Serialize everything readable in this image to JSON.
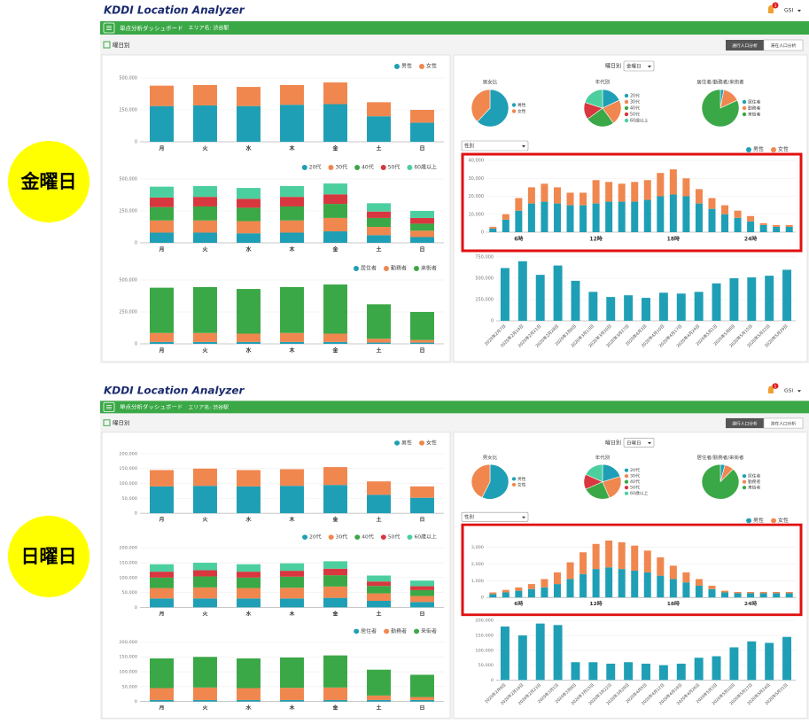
{
  "dashboards": [
    {
      "day_label": "金曜日",
      "header": {
        "logo": "KDDI Location Analyzer",
        "notifications": 1,
        "user": "GSI"
      },
      "nav": {
        "title": "単点分析ダッシュボード",
        "area": "エリア名: 渋谷駅"
      },
      "page_title": "曜日別",
      "tabs": [
        "通行人口分析",
        "滞在人口分析"
      ],
      "day_select": {
        "label": "曜日別",
        "value": "金曜日"
      },
      "weekday_charts": [
        {
          "type": "bar",
          "stacked": true,
          "categories": [
            "月",
            "火",
            "水",
            "木",
            "金",
            "土",
            "日"
          ],
          "series": [
            {
              "name": "男性",
              "color": "#1f9fb5",
              "values": [
                280000,
                285000,
                280000,
                290000,
                295000,
                200000,
                150000
              ]
            },
            {
              "name": "女性",
              "color": "#f0874f",
              "values": [
                160000,
                160000,
                150000,
                155000,
                170000,
                110000,
                100000
              ]
            }
          ],
          "ylim": [
            0,
            500000
          ],
          "yticks": [
            0,
            {
              "value": 250000,
              "label": "250,000"
            },
            {
              "value": 500000,
              "label": "500,000"
            }
          ]
        },
        {
          "type": "bar",
          "stacked": true,
          "categories": [
            "月",
            "火",
            "水",
            "木",
            "金",
            "土",
            "日"
          ],
          "series": [
            {
              "name": "20代",
              "color": "#1f9fb5",
              "values": [
                80000,
                80000,
                75000,
                80000,
                90000,
                60000,
                45000
              ]
            },
            {
              "name": "30代",
              "color": "#f0874f",
              "values": [
                95000,
                95000,
                95000,
                95000,
                105000,
                65000,
                50000
              ]
            },
            {
              "name": "40代",
              "color": "#3aa846",
              "values": [
                105000,
                110000,
                105000,
                110000,
                110000,
                70000,
                55000
              ]
            },
            {
              "name": "50代",
              "color": "#d8373f",
              "values": [
                75000,
                75000,
                70000,
                75000,
                75000,
                50000,
                45000
              ]
            },
            {
              "name": "60歳以上",
              "color": "#4ccf9f",
              "values": [
                85000,
                85000,
                85000,
                85000,
                85000,
                65000,
                55000
              ]
            }
          ],
          "ylim": [
            0,
            500000
          ],
          "yticks": [
            0,
            {
              "value": 250000,
              "label": "250,000"
            },
            {
              "value": 500000,
              "label": "500,000"
            }
          ]
        },
        {
          "type": "bar",
          "stacked": true,
          "categories": [
            "月",
            "火",
            "水",
            "木",
            "金",
            "土",
            "日"
          ],
          "series": [
            {
              "name": "居住者",
              "color": "#1f9fb5",
              "values": [
                15000,
                15000,
                15000,
                15000,
                15000,
                10000,
                10000
              ]
            },
            {
              "name": "勤務者",
              "color": "#f0874f",
              "values": [
                70000,
                70000,
                65000,
                70000,
                65000,
                30000,
                20000
              ]
            },
            {
              "name": "来街者",
              "color": "#3aa846",
              "values": [
                355000,
                360000,
                350000,
                360000,
                385000,
                270000,
                220000
              ]
            }
          ],
          "ylim": [
            0,
            500000
          ],
          "yticks": [
            0,
            {
              "value": 250000,
              "label": "250,000"
            },
            {
              "value": 500000,
              "label": "500,000"
            }
          ]
        }
      ],
      "pies": [
        {
          "type": "pie",
          "title": "男女比",
          "categories": [
            "男性",
            "女性"
          ],
          "values": [
            62,
            38
          ],
          "colors": [
            "#1f9fb5",
            "#f0874f"
          ]
        },
        {
          "type": "pie",
          "title": "年代別",
          "categories": [
            "20代",
            "30代",
            "40代",
            "50代",
            "60歳以上"
          ],
          "values": [
            18,
            22,
            25,
            15,
            20
          ],
          "colors": [
            "#1f9fb5",
            "#f0874f",
            "#3aa846",
            "#d8373f",
            "#4ccf9f"
          ]
        },
        {
          "type": "pie",
          "title": "居住者/勤務者/来街者",
          "categories": [
            "居住者",
            "勤務者",
            "来街者"
          ],
          "values": [
            3,
            15,
            82
          ],
          "colors": [
            "#1f9fb5",
            "#f0874f",
            "#3aa846"
          ]
        }
      ],
      "hourly_select": "性別",
      "hourly": {
        "type": "bar",
        "stacked": true,
        "categories": [
          null,
          null,
          "6時",
          null,
          null,
          null,
          null,
          null,
          "12時",
          null,
          null,
          null,
          null,
          null,
          "18時",
          null,
          null,
          null,
          null,
          null,
          "24時",
          null,
          null,
          null
        ],
        "series": [
          {
            "name": "男性",
            "color": "#1f9fb5",
            "values": [
              2000,
              7000,
              12000,
              16000,
              17000,
              16000,
              15000,
              15000,
              16000,
              17000,
              17000,
              17000,
              18000,
              20000,
              21000,
              20000,
              16000,
              13000,
              10000,
              8000,
              6000,
              4000,
              3000,
              3000
            ]
          },
          {
            "name": "女性",
            "color": "#f0874f",
            "values": [
              1000,
              3000,
              7000,
              9000,
              10000,
              9000,
              7000,
              7000,
              13000,
              11000,
              10000,
              11000,
              11000,
              13000,
              14000,
              10000,
              8000,
              6000,
              5000,
              4000,
              3000,
              1000,
              1000,
              1000
            ]
          }
        ],
        "ylim": [
          0,
          40000
        ],
        "yticks": [
          0,
          {
            "value": 10000,
            "label": "10,000"
          },
          {
            "value": 20000,
            "label": "20,000"
          },
          {
            "value": 30000,
            "label": "30,000"
          },
          {
            "value": 40000,
            "label": "40,000"
          }
        ]
      },
      "dates": {
        "type": "bar",
        "color": "#1f9fb5",
        "categories": [
          "2020年2月7日",
          "2020年2月14日",
          "2020年2月21日",
          "2020年2月28日",
          "2020年3月6日",
          "2020年3月13日",
          "2020年3月20日",
          "2020年3月27日",
          "2020年4月3日",
          "2020年4月10日",
          "2020年4月17日",
          "2020年4月24日",
          "2020年5月1日",
          "2020年5月8日",
          "2020年5月15日",
          "2020年5月22日",
          "2020年5月29日"
        ],
        "values": [
          620000,
          700000,
          540000,
          650000,
          470000,
          340000,
          280000,
          300000,
          270000,
          330000,
          320000,
          340000,
          440000,
          500000,
          510000,
          530000,
          600000
        ],
        "ylim": [
          0,
          750000
        ],
        "yticks": [
          0,
          {
            "value": 250000,
            "label": "250,000"
          },
          {
            "value": 500000,
            "label": "500,000"
          },
          {
            "value": 750000,
            "label": "750,000"
          }
        ]
      }
    },
    {
      "day_label": "日曜日",
      "header": {
        "logo": "KDDI Location Analyzer",
        "notifications": 1,
        "user": "GSI"
      },
      "nav": {
        "title": "単点分析ダッシュボード",
        "area": "エリア名: 渋谷駅"
      },
      "page_title": "曜日別",
      "tabs": [
        "通行人口分析",
        "滞在人口分析"
      ],
      "day_select": {
        "label": "曜日別",
        "value": "日曜日"
      },
      "weekday_charts": [
        {
          "type": "bar",
          "stacked": true,
          "categories": [
            "月",
            "火",
            "水",
            "木",
            "金",
            "土",
            "日"
          ],
          "series": [
            {
              "name": "男性",
              "color": "#1f9fb5",
              "values": [
                90000,
                92000,
                90000,
                92000,
                95000,
                62000,
                52000
              ]
            },
            {
              "name": "女性",
              "color": "#f0874f",
              "values": [
                55000,
                58000,
                55000,
                56000,
                60000,
                45000,
                38000
              ]
            }
          ],
          "ylim": [
            0,
            200000
          ],
          "yticks": [
            0,
            {
              "value": 50000,
              "label": "50,000"
            },
            {
              "value": 100000,
              "label": "100,000"
            },
            {
              "value": 150000,
              "label": "150,000"
            },
            {
              "value": 200000,
              "label": "200,000"
            }
          ]
        },
        {
          "type": "bar",
          "stacked": true,
          "categories": [
            "月",
            "火",
            "水",
            "木",
            "金",
            "土",
            "日"
          ],
          "series": [
            {
              "name": "20代",
              "color": "#1f9fb5",
              "values": [
                30000,
                30000,
                30000,
                30000,
                32000,
                22000,
                18000
              ]
            },
            {
              "name": "30代",
              "color": "#f0874f",
              "values": [
                35000,
                37000,
                35000,
                36000,
                38000,
                25000,
                20000
              ]
            },
            {
              "name": "40代",
              "color": "#3aa846",
              "values": [
                35000,
                37000,
                35000,
                37000,
                38000,
                25000,
                20000
              ]
            },
            {
              "name": "50代",
              "color": "#d8373f",
              "values": [
                20000,
                21000,
                20000,
                20000,
                22000,
                15000,
                13000
              ]
            },
            {
              "name": "60歳以上",
              "color": "#4ccf9f",
              "values": [
                25000,
                25000,
                25000,
                25000,
                25000,
                20000,
                19000
              ]
            }
          ],
          "ylim": [
            0,
            200000
          ],
          "yticks": [
            0,
            {
              "value": 50000,
              "label": "50,000"
            },
            {
              "value": 100000,
              "label": "100,000"
            },
            {
              "value": 150000,
              "label": "150,000"
            },
            {
              "value": 200000,
              "label": "200,000"
            }
          ]
        },
        {
          "type": "bar",
          "stacked": true,
          "categories": [
            "月",
            "火",
            "水",
            "木",
            "金",
            "土",
            "日"
          ],
          "series": [
            {
              "name": "居住者",
              "color": "#1f9fb5",
              "values": [
                5000,
                5000,
                5000,
                5000,
                5000,
                5000,
                5000
              ]
            },
            {
              "name": "勤務者",
              "color": "#f0874f",
              "values": [
                40000,
                42000,
                40000,
                41000,
                42000,
                15000,
                10000
              ]
            },
            {
              "name": "来街者",
              "color": "#3aa846",
              "values": [
                100000,
                103000,
                100000,
                102000,
                108000,
                87000,
                75000
              ]
            }
          ],
          "ylim": [
            0,
            200000
          ],
          "yticks": [
            0,
            {
              "value": 50000,
              "label": "50,000"
            },
            {
              "value": 100000,
              "label": "100,000"
            },
            {
              "value": 150000,
              "label": "150,000"
            },
            {
              "value": 200000,
              "label": "200,000"
            }
          ]
        }
      ],
      "pies": [
        {
          "type": "pie",
          "title": "男女比",
          "categories": [
            "男性",
            "女性"
          ],
          "values": [
            57,
            43
          ],
          "colors": [
            "#1f9fb5",
            "#f0874f"
          ]
        },
        {
          "type": "pie",
          "title": "年代別",
          "categories": [
            "20代",
            "30代",
            "40代",
            "50代",
            "60歳以上"
          ],
          "values": [
            20,
            24,
            24,
            14,
            18
          ],
          "colors": [
            "#1f9fb5",
            "#f0874f",
            "#3aa846",
            "#d8373f",
            "#4ccf9f"
          ]
        },
        {
          "type": "pie",
          "title": "居住者/勤務者/来街者",
          "categories": [
            "居住者",
            "勤務者",
            "来街者"
          ],
          "values": [
            4,
            8,
            88
          ],
          "colors": [
            "#1f9fb5",
            "#f0874f",
            "#3aa846"
          ]
        }
      ],
      "hourly_select": "性別",
      "hourly": {
        "type": "bar",
        "stacked": true,
        "categories": [
          null,
          null,
          "6時",
          null,
          null,
          null,
          null,
          null,
          "12時",
          null,
          null,
          null,
          null,
          null,
          "18時",
          null,
          null,
          null,
          null,
          null,
          "24時",
          null,
          null,
          null
        ],
        "series": [
          {
            "name": "男性",
            "color": "#1f9fb5",
            "values": [
              200,
              300,
              400,
              500,
              600,
              800,
              1100,
              1400,
              1700,
              1800,
              1700,
              1600,
              1500,
              1300,
              1100,
              900,
              700,
              500,
              300,
              250,
              250,
              250,
              250,
              250
            ]
          },
          {
            "name": "女性",
            "color": "#f0874f",
            "values": [
              100,
              150,
              200,
              300,
              500,
              700,
              1000,
              1300,
              1500,
              1600,
              1600,
              1500,
              1300,
              1100,
              800,
              600,
              400,
              200,
              100,
              80,
              80,
              80,
              80,
              80
            ]
          }
        ],
        "ylim": [
          0,
          4000
        ],
        "yticks": [
          0,
          {
            "value": 1000,
            "label": "1,000"
          },
          {
            "value": 2000,
            "label": "2,000"
          },
          {
            "value": 3000,
            "label": "3,000"
          }
        ]
      },
      "dates": {
        "type": "bar",
        "color": "#1f9fb5",
        "categories": [
          "2020年2月9日",
          "2020年2月16日",
          "2020年2月23日",
          "2020年3月1日",
          "2020年3月8日",
          "2020年3月15日",
          "2020年3月22日",
          "2020年3月29日",
          "2020年4月5日",
          "2020年4月12日",
          "2020年4月19日",
          "2020年4月26日",
          "2020年5月3日",
          "2020年5月10日",
          "2020年5月17日",
          "2020年5月24日",
          "2020年5月31日"
        ],
        "values": [
          180000,
          150000,
          190000,
          185000,
          60000,
          60000,
          55000,
          60000,
          55000,
          50000,
          55000,
          75000,
          80000,
          110000,
          130000,
          125000,
          145000
        ],
        "ylim": [
          0,
          200000
        ],
        "yticks": [
          0,
          {
            "value": 50000,
            "label": "50,000"
          },
          {
            "value": 100000,
            "label": "100,000"
          },
          {
            "value": 150000,
            "label": "150,000"
          },
          {
            "value": 200000,
            "label": "200,000"
          }
        ]
      }
    }
  ]
}
